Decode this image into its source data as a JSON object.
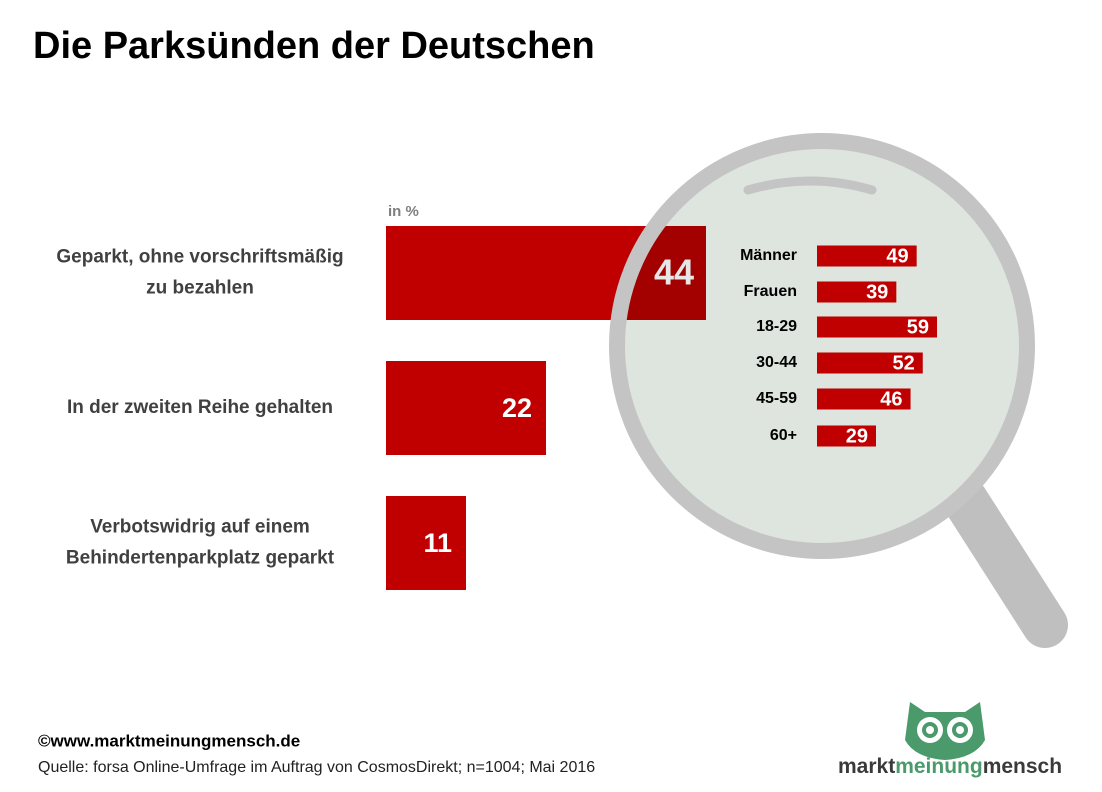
{
  "title": "Die Parksünden der Deutschen",
  "chart_data": [
    {
      "type": "hbar",
      "unit": "in %",
      "categories": [
        [
          "Geparkt, ohne vorschriftsmäßig",
          "zu bezahlen"
        ],
        [
          "In der zweiten Reihe gehalten"
        ],
        [
          "Verbotswidrig auf einem",
          "Behindertenparkplatz geparkt"
        ]
      ],
      "values": [
        44,
        22,
        11
      ],
      "color": "#c00000"
    },
    {
      "type": "hbar-small",
      "categories": [
        "Männer",
        "Frauen",
        "18-29",
        "30-44",
        "45-59",
        "60+"
      ],
      "values": [
        49,
        39,
        59,
        52,
        46,
        29
      ],
      "color": "#c00000"
    }
  ],
  "footer": {
    "copyright": "©www.marktmeinungmensch.de",
    "source": "Quelle: forsa Online-Umfrage im Auftrag von CosmosDirekt; n=1004; Mai 2016"
  },
  "logo": [
    "markt",
    "meinung",
    "mensch"
  ]
}
